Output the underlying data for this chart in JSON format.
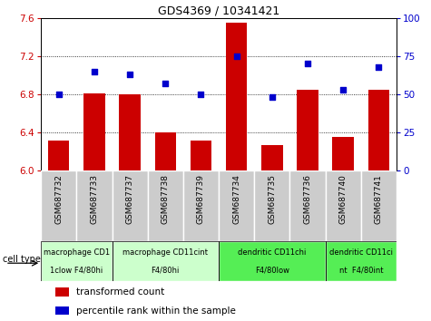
{
  "title": "GDS4369 / 10341421",
  "samples": [
    "GSM687732",
    "GSM687733",
    "GSM687737",
    "GSM687738",
    "GSM687739",
    "GSM687734",
    "GSM687735",
    "GSM687736",
    "GSM687740",
    "GSM687741"
  ],
  "transformed_count": [
    6.31,
    6.81,
    6.8,
    6.4,
    6.31,
    7.55,
    6.27,
    6.85,
    6.35,
    6.85
  ],
  "percentile_rank": [
    50,
    65,
    63,
    57,
    50,
    75,
    48,
    70,
    53,
    68
  ],
  "ylim_left": [
    6.0,
    7.6
  ],
  "ylim_right": [
    0,
    100
  ],
  "yticks_left": [
    6.0,
    6.4,
    6.8,
    7.2,
    7.6
  ],
  "yticks_right": [
    0,
    25,
    50,
    75,
    100
  ],
  "bar_color": "#cc0000",
  "dot_color": "#0000cc",
  "cell_type_groups": [
    {
      "label_top": "macrophage CD1",
      "label_bot": "1clow F4/80hi",
      "start": 0,
      "end": 2,
      "color": "#ccffcc"
    },
    {
      "label_top": "macrophage CD11cint",
      "label_bot": "F4/80hi",
      "start": 2,
      "end": 5,
      "color": "#ccffcc"
    },
    {
      "label_top": "dendritic CD11chi",
      "label_bot": "F4/80low",
      "start": 5,
      "end": 8,
      "color": "#55ee55"
    },
    {
      "label_top": "dendritic CD11ci",
      "label_bot": "nt  F4/80int",
      "start": 8,
      "end": 10,
      "color": "#55ee55"
    }
  ],
  "legend_bar_label": "transformed count",
  "legend_dot_label": "percentile rank within the sample",
  "cell_type_label": "cell type",
  "tick_label_color_left": "#cc0000",
  "tick_label_color_right": "#0000cc",
  "xtick_bg_color": "#cccccc",
  "xtick_border_color": "#ffffff"
}
